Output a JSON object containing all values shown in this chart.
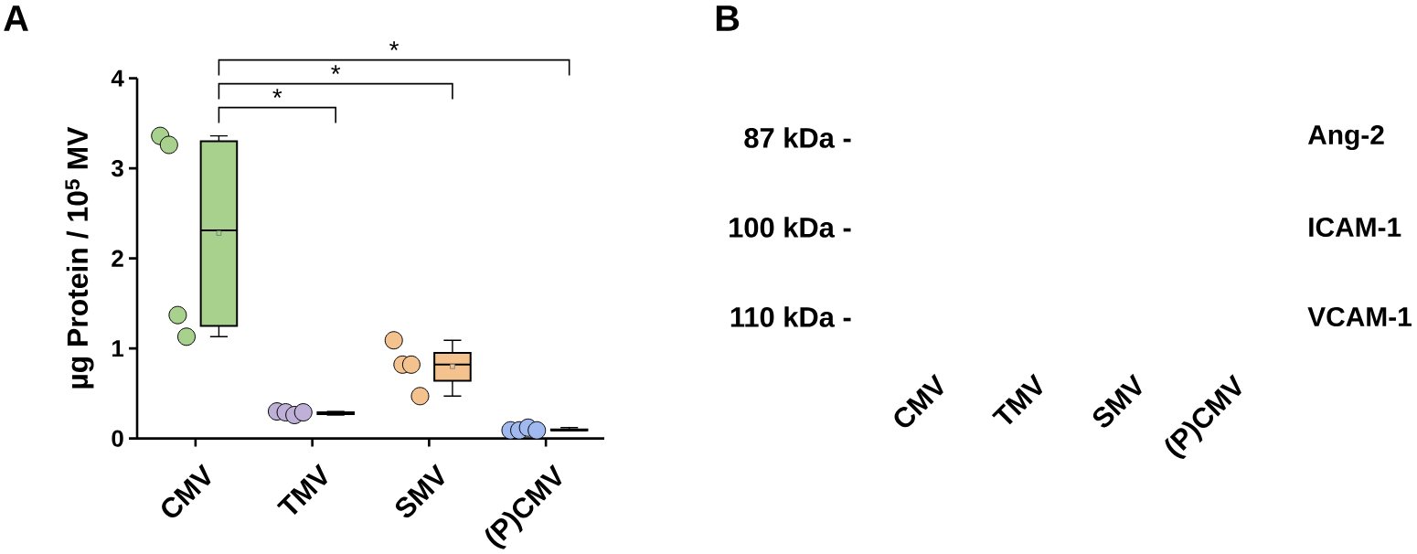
{
  "chart_data": [
    {
      "type": "box",
      "title": "A",
      "ylabel": "µg Protein / 10$^{5}$ MV",
      "categories": [
        "CMV",
        "TMV",
        "SMV",
        "(P)CMV"
      ],
      "ylim": [
        0,
        4
      ],
      "yticks": [
        0,
        1,
        2,
        3,
        4
      ],
      "marker": "circle",
      "series": [
        {
          "type": "box",
          "colors": [
            "#a9d18e",
            "#beb0d6",
            "#f4c28e",
            "#a0baf0"
          ],
          "boxes": [
            {
              "low": 1.13,
              "q1": 1.25,
              "median": 2.31,
              "q3": 3.3,
              "high": 3.36,
              "mean": 2.28
            },
            {
              "low": 0.26,
              "q1": 0.27,
              "median": 0.29,
              "q3": 0.29,
              "high": 0.3
            },
            {
              "low": 0.47,
              "q1": 0.64,
              "median": 0.82,
              "q3": 0.95,
              "high": 1.09,
              "mean": 0.8
            },
            {
              "low": 0.09,
              "q1": 0.09,
              "median": 0.09,
              "q3": 0.1,
              "high": 0.12
            }
          ]
        },
        {
          "type": "scatter",
          "x": [
            "CMV",
            "CMV",
            "CMV",
            "CMV",
            "TMV",
            "TMV",
            "TMV",
            "TMV",
            "SMV",
            "SMV",
            "SMV",
            "SMV",
            "(P)CMV",
            "(P)CMV",
            "(P)CMV",
            "(P)CMV"
          ],
          "values": [
            3.36,
            3.26,
            1.37,
            1.13,
            0.3,
            0.29,
            0.26,
            0.29,
            1.09,
            0.82,
            0.82,
            0.47,
            0.09,
            0.09,
            0.12,
            0.09
          ],
          "colors": [
            "#a9d18e",
            "#a9d18e",
            "#a9d18e",
            "#a9d18e",
            "#beb0d6",
            "#beb0d6",
            "#beb0d6",
            "#beb0d6",
            "#f4c28e",
            "#f4c28e",
            "#f4c28e",
            "#f4c28e",
            "#a0baf0",
            "#a0baf0",
            "#a0baf0",
            "#a0baf0"
          ]
        }
      ],
      "annotations": [
        "*",
        "*",
        "*"
      ]
    },
    {
      "type": "other",
      "title": "B",
      "categories": [
        "CMV",
        "TMV",
        "SMV",
        "(P)CMV"
      ],
      "annotations": [
        "87 kDa -",
        "100 kDa -",
        "110 kDa -",
        "Ang-2",
        "ICAM-1",
        "VCAM-1"
      ]
    }
  ]
}
